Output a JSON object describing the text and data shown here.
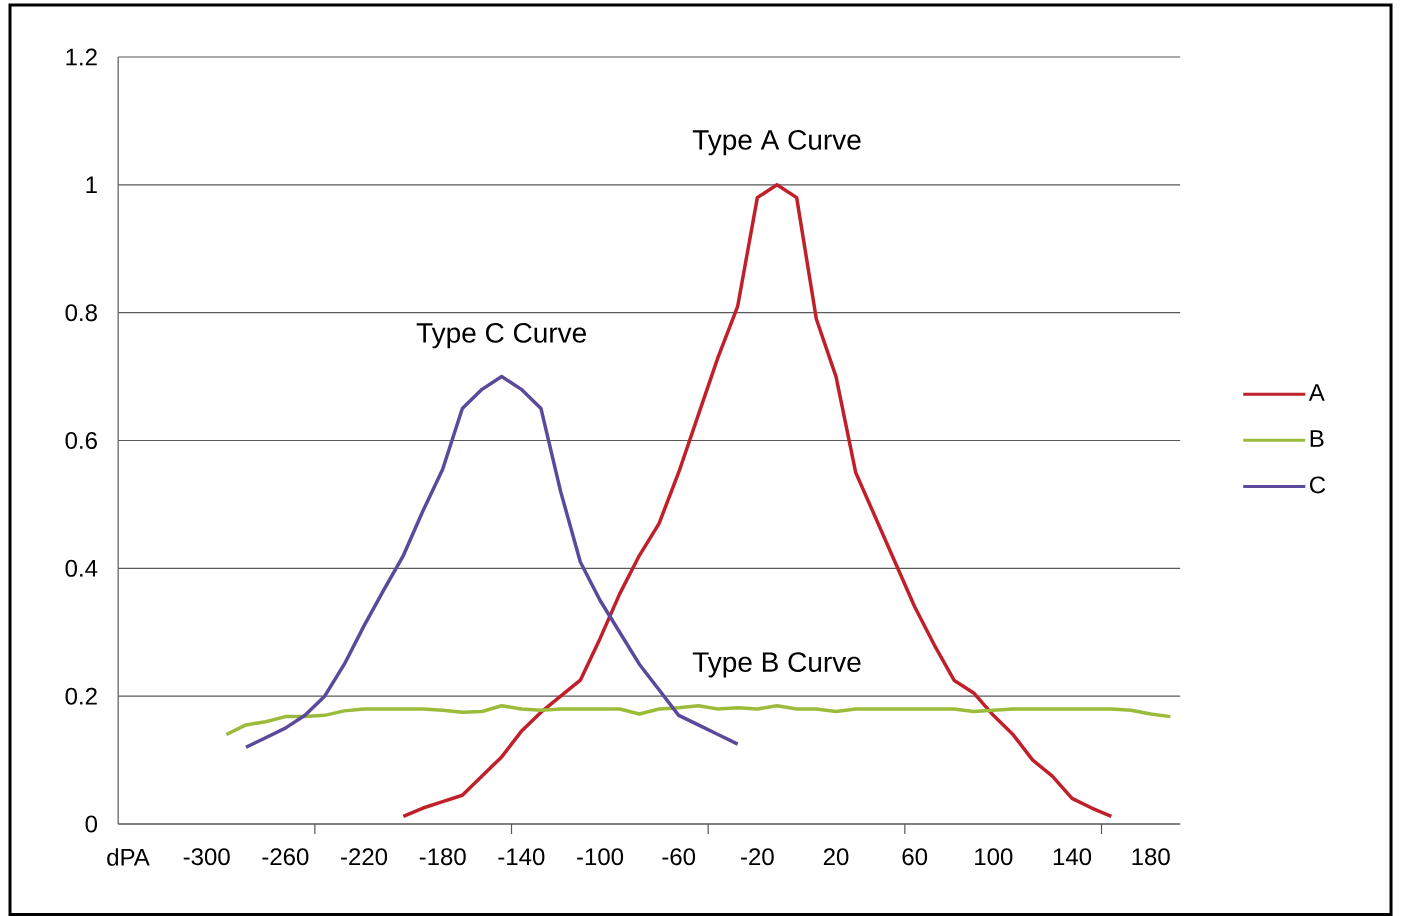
{
  "chart_data": {
    "type": "line",
    "categories": [
      "dPA",
      null,
      null,
      null,
      "-300",
      null,
      null,
      null,
      "-260",
      null,
      null,
      null,
      "-220",
      null,
      null,
      null,
      "-180",
      null,
      null,
      null,
      "-140",
      null,
      null,
      null,
      "-100",
      null,
      null,
      null,
      "-60",
      null,
      null,
      null,
      "-20",
      null,
      null,
      null,
      "20",
      null,
      null,
      null,
      "60",
      null,
      null,
      null,
      "100",
      null,
      null,
      null,
      "140",
      null,
      null,
      null,
      "180",
      null
    ],
    "series": [
      {
        "name": "A",
        "color": "#c0202a",
        "values": [
          null,
          null,
          null,
          null,
          null,
          null,
          null,
          null,
          null,
          null,
          null,
          null,
          null,
          null,
          0.012,
          0.025,
          0.035,
          0.045,
          0.075,
          0.105,
          0.145,
          0.175,
          0.2,
          0.225,
          0.29,
          0.36,
          0.42,
          0.47,
          0.55,
          0.64,
          0.73,
          0.81,
          0.98,
          1.0,
          0.98,
          0.79,
          0.7,
          0.55,
          0.48,
          0.41,
          0.34,
          0.28,
          0.225,
          0.205,
          0.17,
          0.14,
          0.1,
          0.075,
          0.04,
          0.025,
          0.012,
          null,
          null,
          null
        ]
      },
      {
        "name": "B",
        "color": "#9bbb3b",
        "values": [
          null,
          null,
          null,
          null,
          null,
          0.14,
          0.155,
          0.16,
          0.168,
          0.168,
          0.17,
          0.177,
          0.18,
          0.18,
          0.18,
          0.18,
          0.178,
          0.175,
          0.176,
          0.185,
          0.18,
          0.178,
          0.18,
          0.18,
          0.18,
          0.18,
          0.172,
          0.18,
          0.182,
          0.185,
          0.18,
          0.182,
          0.18,
          0.185,
          0.18,
          0.18,
          0.176,
          0.18,
          0.18,
          0.18,
          0.18,
          0.18,
          0.18,
          0.176,
          0.178,
          0.18,
          0.18,
          0.18,
          0.18,
          0.18,
          0.18,
          0.178,
          0.172,
          0.168
        ]
      },
      {
        "name": "C",
        "color": "#5b4a9b",
        "values": [
          null,
          null,
          null,
          null,
          null,
          null,
          0.12,
          0.135,
          0.15,
          0.17,
          0.2,
          0.25,
          0.31,
          0.366,
          0.42,
          0.49,
          0.555,
          0.65,
          0.68,
          0.7,
          0.68,
          0.65,
          0.52,
          0.41,
          0.35,
          0.3,
          0.25,
          0.21,
          0.17,
          0.155,
          0.14,
          0.125,
          null,
          null,
          null,
          null,
          null,
          null,
          null,
          null,
          null,
          null,
          null,
          null,
          null,
          null,
          null,
          null,
          null,
          null,
          null,
          null,
          null,
          null
        ]
      }
    ],
    "ylim": [
      0,
      1.2
    ],
    "yticks": [
      0,
      0.2,
      0.4,
      0.6,
      0.8,
      1,
      1.2
    ],
    "grid": "y",
    "legend": "right",
    "marker": "none",
    "line_style": "solid",
    "annotations": [
      "Type A Curve",
      "Type C Curve",
      "Type B Curve"
    ]
  }
}
